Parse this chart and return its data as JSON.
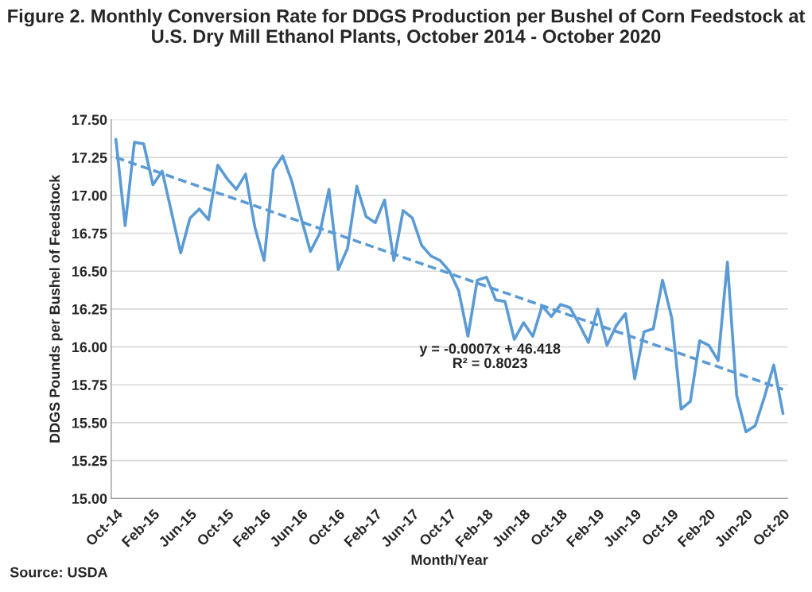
{
  "chart_data": {
    "type": "line",
    "title": "Figure 2. Monthly Conversion Rate for DDGS Production per Bushel of Corn Feedstock at U.S. Dry Mill Ethanol Plants, October 2014 - October 2020",
    "xlabel": "Month/Year",
    "ylabel": "DDGS Pounds per Bushel of Feedstock",
    "categories": [
      "Oct-14",
      null,
      null,
      null,
      "Feb-15",
      null,
      null,
      null,
      "Jun-15",
      null,
      null,
      null,
      "Oct-15",
      null,
      null,
      null,
      "Feb-16",
      null,
      null,
      null,
      "Jun-16",
      null,
      null,
      null,
      "Oct-16",
      null,
      null,
      null,
      "Feb-17",
      null,
      null,
      null,
      "Jun-17",
      null,
      null,
      null,
      "Oct-17",
      null,
      null,
      null,
      "Feb-18",
      null,
      null,
      null,
      "Jun-18",
      null,
      null,
      null,
      "Oct-18",
      null,
      null,
      null,
      "Feb-19",
      null,
      null,
      null,
      "Jun-19",
      null,
      null,
      null,
      "Oct-19",
      null,
      null,
      null,
      "Feb-20",
      null,
      null,
      null,
      "Jun-20",
      null,
      null,
      null,
      "Oct-20"
    ],
    "series": [
      {
        "color": "#5b9bd5",
        "line_style": "solid",
        "values": [
          17.37,
          16.8,
          17.35,
          17.34,
          17.07,
          17.16,
          16.89,
          16.62,
          16.85,
          16.91,
          16.84,
          17.2,
          17.11,
          17.04,
          17.14,
          16.79,
          16.57,
          17.17,
          17.26,
          17.09,
          16.85,
          16.63,
          16.75,
          17.04,
          16.51,
          16.65,
          17.06,
          16.86,
          16.82,
          16.97,
          16.57,
          16.9,
          16.85,
          16.67,
          16.6,
          16.57,
          16.5,
          16.37,
          16.07,
          16.44,
          16.46,
          16.31,
          16.3,
          16.05,
          16.16,
          16.07,
          16.27,
          16.2,
          16.28,
          16.26,
          16.15,
          16.03,
          16.25,
          16.01,
          16.14,
          16.22,
          15.79,
          16.1,
          16.12,
          16.44,
          16.19,
          15.59,
          15.64,
          16.04,
          16.01,
          15.91,
          16.56,
          15.68,
          15.44,
          15.48,
          15.67,
          15.88,
          15.56
        ]
      },
      {
        "color": "#5b9bd5",
        "line_style": "dashed",
        "values": [
          17.25,
          null,
          null,
          null,
          null,
          null,
          null,
          null,
          null,
          null,
          null,
          null,
          null,
          null,
          null,
          null,
          null,
          null,
          null,
          null,
          null,
          null,
          null,
          null,
          null,
          null,
          null,
          null,
          null,
          null,
          null,
          null,
          null,
          null,
          null,
          null,
          null,
          null,
          null,
          null,
          null,
          null,
          null,
          null,
          null,
          null,
          null,
          null,
          null,
          null,
          null,
          null,
          null,
          null,
          null,
          null,
          null,
          null,
          null,
          null,
          null,
          null,
          null,
          null,
          null,
          null,
          null,
          null,
          null,
          null,
          null,
          null,
          15.72
        ]
      }
    ],
    "ylim": [
      15.0,
      17.5
    ],
    "yticks": [
      {
        "value": 15.0,
        "label": "15.00"
      },
      {
        "value": 15.25,
        "label": "15.25"
      },
      {
        "value": 15.5,
        "label": "15.50"
      },
      {
        "value": 15.75,
        "label": "15.75"
      },
      {
        "value": 16.0,
        "label": "16.00"
      },
      {
        "value": 16.25,
        "label": "16.25"
      },
      {
        "value": 16.5,
        "label": "16.50"
      },
      {
        "value": 16.75,
        "label": "16.75"
      },
      {
        "value": 17.0,
        "label": "17.00"
      },
      {
        "value": 17.25,
        "label": "17.25"
      },
      {
        "value": 17.5,
        "label": "17.50"
      }
    ],
    "grid": "y",
    "legend": false,
    "marker": "none",
    "annotations": [
      "y = -0.0007x + 46.418\nR² = 0.8023",
      "Source: USDA"
    ]
  }
}
